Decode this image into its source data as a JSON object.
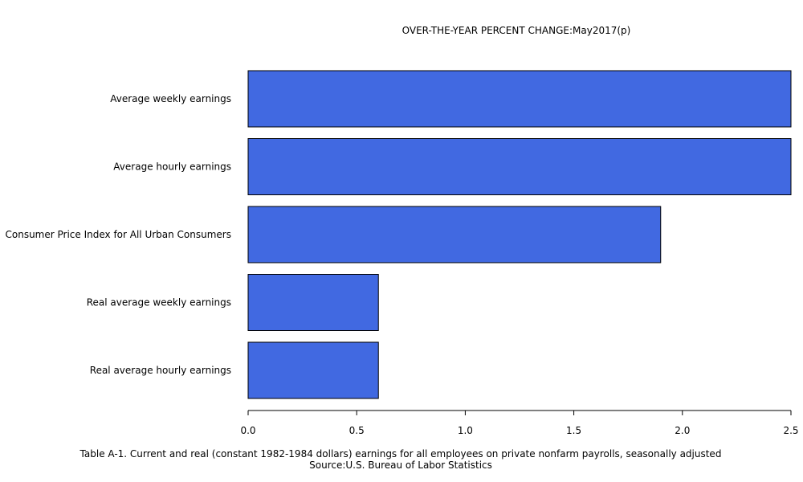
{
  "chart_data": {
    "type": "bar",
    "orientation": "horizontal",
    "title": "OVER-THE-YEAR PERCENT CHANGE:May2017(p)",
    "categories": [
      "Average weekly earnings",
      "Average hourly earnings",
      "Consumer Price Index for All Urban Consumers",
      "Real average weekly earnings",
      "Real average hourly earnings"
    ],
    "values": [
      2.5,
      2.5,
      1.9,
      0.6,
      0.6
    ],
    "xlim": [
      0,
      2.5
    ],
    "xticks": [
      "0.0",
      "0.5",
      "1.0",
      "1.5",
      "2.0",
      "2.5"
    ],
    "xtick_values": [
      0,
      0.5,
      1.0,
      1.5,
      2.0,
      2.5
    ],
    "xlabel": "",
    "ylabel": "",
    "grid": false,
    "bar_color": "#4169e1",
    "bar_edge_color": "#000000"
  },
  "caption": {
    "line1": "Table A-1.  Current and real (constant 1982-1984 dollars) earnings for all employees on private nonfarm payrolls, seasonally adjusted",
    "line2": "Source:U.S. Bureau of Labor Statistics"
  }
}
